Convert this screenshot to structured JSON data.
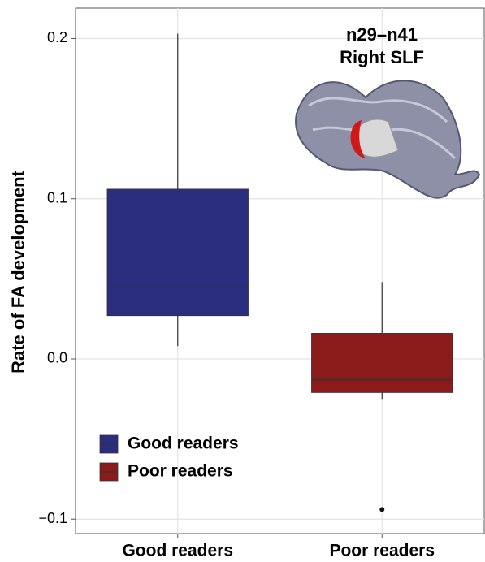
{
  "chart_data": {
    "type": "box",
    "y_label": "Rate of FA development",
    "annotation": [
      "n29–n41",
      "Right SLF"
    ],
    "categories": [
      "Good readers",
      "Poor readers"
    ],
    "series": [
      {
        "name": "Good readers",
        "color": "#2b2d7f",
        "whisker_low": 0.008,
        "q1": 0.027,
        "median": 0.045,
        "q3": 0.106,
        "whisker_high": 0.203,
        "outliers": []
      },
      {
        "name": "Poor readers",
        "color": "#8b1a1a",
        "whisker_low": -0.025,
        "q1": -0.021,
        "median": -0.013,
        "q3": 0.016,
        "whisker_high": 0.048,
        "outliers": [
          -0.094
        ]
      }
    ],
    "ylim": [
      -0.109,
      0.219
    ],
    "yticks": [
      {
        "value": -0.1,
        "label": "−0.1"
      },
      {
        "value": 0,
        "label": "0.0"
      },
      0.1,
      0.2
    ],
    "grid": true,
    "legend": "bottom-left"
  }
}
